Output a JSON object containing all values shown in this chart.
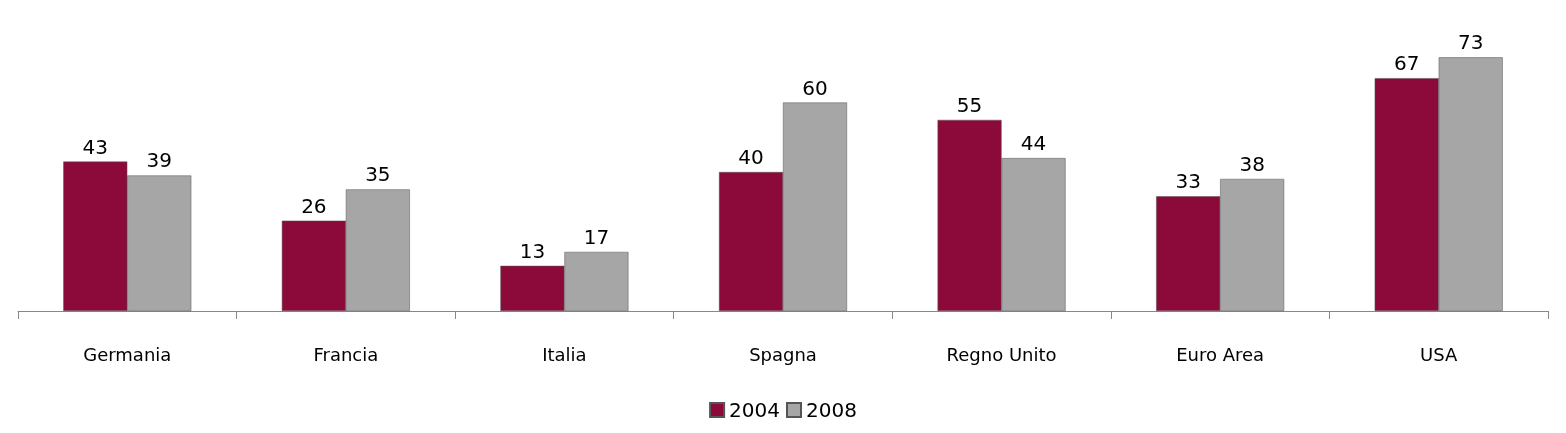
{
  "chart_data": {
    "type": "bar",
    "categories": [
      "Germania",
      "Francia",
      "Italia",
      "Spagna",
      "Regno Unito",
      "Euro Area",
      "USA"
    ],
    "series": [
      {
        "name": "2004",
        "color": "#8b0a3a",
        "values": [
          43,
          26,
          13,
          40,
          55,
          33,
          67
        ]
      },
      {
        "name": "2008",
        "color": "#a6a6a6",
        "values": [
          39,
          35,
          17,
          60,
          44,
          38,
          73
        ]
      }
    ],
    "data_labels": true,
    "legend": "bottom",
    "grid": false
  }
}
